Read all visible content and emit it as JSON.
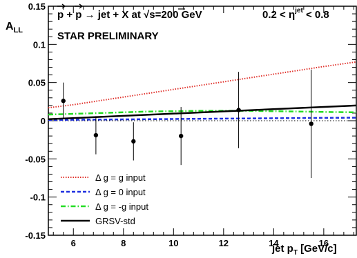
{
  "chart_data": {
    "type": "scatter",
    "title": "",
    "xlabel": "jet p_T [GeV/c]",
    "ylabel": "A_LL",
    "xlim": [
      5.0,
      17.3
    ],
    "ylim": [
      -0.15,
      0.15
    ],
    "x_ticks": [
      6,
      8,
      10,
      12,
      14,
      16
    ],
    "y_ticks": [
      -0.15,
      -0.1,
      -0.05,
      0,
      0.05,
      0.1,
      0.15
    ],
    "x_tick_labels": [
      "6",
      "8",
      "10",
      "12",
      "14",
      "16"
    ],
    "y_tick_labels": [
      "-0.15",
      "-0.1",
      "-0.05",
      "0",
      "0.05",
      "0.1",
      "0.15"
    ],
    "annotations": {
      "reaction_left": "p + p → jet + X at ",
      "reaction_sqrt": "√",
      "reaction_s": "s",
      "reaction_right": "=200 GeV",
      "eta_left": "0.2 < η",
      "eta_sup": "jet",
      "eta_right": " < 0.8",
      "preliminary": "STAR PRELIMINARY"
    },
    "data_points": {
      "x": [
        5.6,
        6.9,
        8.4,
        10.3,
        12.6,
        15.5
      ],
      "y": [
        0.026,
        -0.019,
        -0.027,
        -0.02,
        0.014,
        -0.004
      ],
      "yerr": [
        0.024,
        0.025,
        0.025,
        0.038,
        0.05,
        0.071
      ],
      "color": "#000000"
    },
    "series": [
      {
        "name": "Δ g = g input",
        "style": "dotted",
        "color": "#e0302a",
        "x": [
          5.0,
          6.0,
          7.0,
          8.0,
          9.0,
          10.0,
          11.0,
          12.0,
          13.0,
          14.0,
          15.0,
          16.0,
          17.3
        ],
        "values": [
          0.017,
          0.021,
          0.026,
          0.031,
          0.036,
          0.041,
          0.046,
          0.051,
          0.056,
          0.061,
          0.066,
          0.071,
          0.077
        ]
      },
      {
        "name": "Δ g = 0 input",
        "style": "dashed",
        "color": "#1f2fe0",
        "x": [
          5.0,
          7.0,
          9.0,
          11.0,
          13.0,
          15.0,
          17.3
        ],
        "values": [
          0.001,
          0.0015,
          0.002,
          0.0025,
          0.003,
          0.0035,
          0.004
        ]
      },
      {
        "name": "Δ g = -g input",
        "style": "dashdot",
        "color": "#22dd22",
        "x": [
          5.0,
          6.0,
          7.0,
          8.0,
          9.0,
          10.0,
          11.0,
          12.0,
          13.0,
          14.0,
          15.0,
          16.0,
          17.3
        ],
        "values": [
          0.008,
          0.009,
          0.01,
          0.011,
          0.012,
          0.0125,
          0.013,
          0.013,
          0.013,
          0.0125,
          0.012,
          0.0115,
          0.011
        ]
      },
      {
        "name": "GRSV-std",
        "style": "solid",
        "color": "#000000",
        "x": [
          5.0,
          17.3
        ],
        "values": [
          0.002,
          0.02
        ]
      }
    ],
    "legend_placement": "bottom-left",
    "grid": false
  }
}
